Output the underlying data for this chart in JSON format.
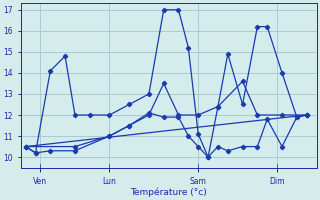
{
  "background_color": "#d4ecec",
  "grid_color": "#aacccc",
  "line_color": "#1a3ab0",
  "xlabel": "Température (°c)",
  "xlabel_color": "#2222aa",
  "ylabel_color": "#2222aa",
  "tick_color": "#2222aa",
  "spine_color": "#2222aa",
  "xlim": [
    0,
    30
  ],
  "ylim": [
    9.5,
    17.3
  ],
  "yticks": [
    10,
    11,
    12,
    13,
    14,
    15,
    16,
    17
  ],
  "xtick_positions": [
    2,
    9,
    18,
    26
  ],
  "xtick_labels": [
    "Ven",
    "Lun",
    "Sam",
    "Dim"
  ],
  "series": {
    "jagged": {
      "x": [
        0.5,
        1.5,
        3,
        4.5,
        5.5,
        7,
        9,
        11,
        13,
        14.5,
        16,
        17,
        18,
        19,
        20,
        21,
        22.5,
        24,
        25,
        26.5,
        28,
        29
      ],
      "y": [
        10.5,
        10.2,
        14.1,
        14.8,
        12.0,
        12.0,
        12.0,
        12.5,
        13.0,
        17.0,
        17.0,
        15.2,
        11.1,
        10.0,
        12.4,
        14.9,
        12.5,
        16.2,
        16.2,
        14.0,
        11.9,
        12.0
      ]
    },
    "min_line": {
      "x": [
        0.5,
        1.5,
        3,
        5.5,
        9,
        11,
        13,
        14.5,
        16,
        17,
        18,
        19,
        20,
        21,
        22.5,
        24,
        25,
        26.5,
        28,
        29
      ],
      "y": [
        10.5,
        10.2,
        10.3,
        10.3,
        11.0,
        11.5,
        12.1,
        11.9,
        11.9,
        11.0,
        10.5,
        10.0,
        10.5,
        10.3,
        10.5,
        10.5,
        11.8,
        10.5,
        11.9,
        12.0
      ]
    },
    "rising": {
      "x": [
        0.5,
        5.5,
        9,
        11,
        13,
        14.5,
        16,
        18,
        20,
        22.5,
        24,
        26.5,
        29
      ],
      "y": [
        10.5,
        10.5,
        11.0,
        11.5,
        12.0,
        13.5,
        12.0,
        12.0,
        12.4,
        13.6,
        12.0,
        12.0,
        12.0
      ]
    },
    "flat": {
      "x": [
        0.5,
        29
      ],
      "y": [
        10.5,
        12.0
      ]
    }
  }
}
